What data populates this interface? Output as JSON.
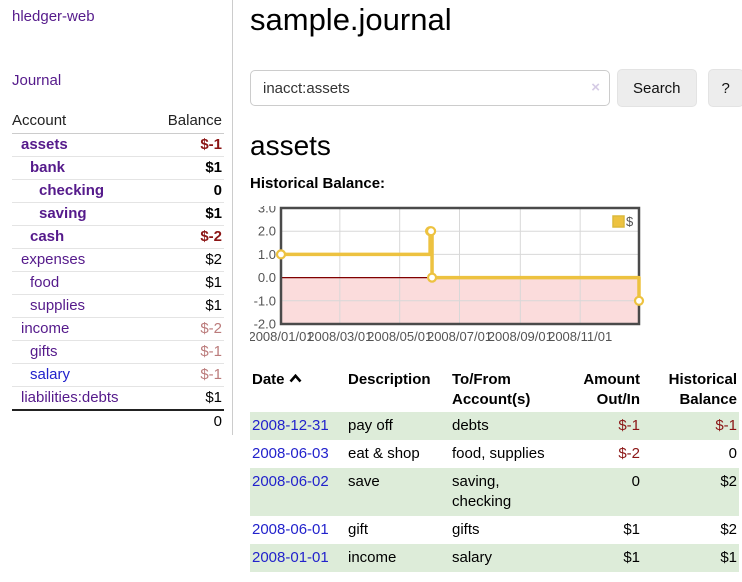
{
  "colors": {
    "link_purple": "#551a8b",
    "link_blue": "#2222cc",
    "negative_strong": "#8b1515",
    "negative_light": "#bb7b7b",
    "row_stripe_green": "#ddecd9",
    "chart_series_yellow": "#edc240",
    "chart_negative_fill": "#fbdcdc",
    "chart_zero_line": "#800000"
  },
  "app": {
    "title": "hledger-web",
    "nav_journal": "Journal"
  },
  "sidebar": {
    "accounts_table": {
      "header_account": "Account",
      "header_balance": "Balance",
      "total": "0",
      "accounts": [
        {
          "name": "assets",
          "indent": 0,
          "bold": true,
          "balance": "$-1",
          "balance_class": "neg-strong",
          "unvisited": false
        },
        {
          "name": "bank",
          "indent": 1,
          "bold": true,
          "balance": "$1",
          "balance_class": "",
          "unvisited": false
        },
        {
          "name": "checking",
          "indent": 2,
          "bold": true,
          "balance": "0",
          "balance_class": "",
          "unvisited": false
        },
        {
          "name": "saving",
          "indent": 2,
          "bold": true,
          "balance": "$1",
          "balance_class": "",
          "unvisited": false
        },
        {
          "name": "cash",
          "indent": 1,
          "bold": true,
          "balance": "$-2",
          "balance_class": "neg-strong",
          "unvisited": false
        },
        {
          "name": "expenses",
          "indent": 0,
          "bold": false,
          "balance": "$2",
          "balance_class": "",
          "unvisited": false
        },
        {
          "name": "food",
          "indent": 1,
          "bold": false,
          "balance": "$1",
          "balance_class": "",
          "unvisited": false
        },
        {
          "name": "supplies",
          "indent": 1,
          "bold": false,
          "balance": "$1",
          "balance_class": "",
          "unvisited": false
        },
        {
          "name": "income",
          "indent": 0,
          "bold": false,
          "balance": "$-2",
          "balance_class": "neg-light",
          "unvisited": false
        },
        {
          "name": "gifts",
          "indent": 1,
          "bold": false,
          "balance": "$-1",
          "balance_class": "neg-light",
          "unvisited": false
        },
        {
          "name": "salary",
          "indent": 1,
          "bold": false,
          "balance": "$-1",
          "balance_class": "neg-light",
          "unvisited": true
        },
        {
          "name": "liabilities:debts",
          "indent": 0,
          "bold": false,
          "balance": "$1",
          "balance_class": "",
          "unvisited": false
        }
      ]
    }
  },
  "main": {
    "title": "sample.journal",
    "search": {
      "value": "inacct:assets",
      "clear_icon": "×",
      "search_label": "Search",
      "help_label": "?"
    },
    "section_title": "assets",
    "chart_label": "Historical Balance:"
  },
  "chart_data": {
    "type": "line",
    "title": "Historical Balance:",
    "step": true,
    "series": [
      {
        "name": "$",
        "color": "#edc240",
        "points": [
          [
            "2008-01-01",
            1
          ],
          [
            "2008-06-01",
            2
          ],
          [
            "2008-06-02",
            2
          ],
          [
            "2008-06-03",
            0
          ],
          [
            "2008-12-31",
            -1
          ]
        ]
      }
    ],
    "x_range": [
      "2008-01-01",
      "2008-12-31"
    ],
    "x_ticks": [
      "2008/01/01",
      "2008/03/01",
      "2008/05/01",
      "2008/07/01",
      "2008/09/01",
      "2008/11/01"
    ],
    "y_ticks": [
      "3.0",
      "2.0",
      "1.0",
      "0.0",
      "-1.0",
      "-2.0"
    ],
    "ylim": [
      -2,
      3
    ],
    "grid": true,
    "legend_position": "top-right",
    "markings": {
      "below_zero_fill": "#fbdcdc",
      "zero_line_color": "#800000"
    }
  },
  "transactions": {
    "headers": [
      "Date",
      "Description",
      "To/From Account(s)",
      "Amount Out/In",
      "Historical Balance"
    ],
    "sort_icon": "chevron-up",
    "rows": [
      {
        "date": "2008-12-31",
        "description": "pay off",
        "accounts": "debts",
        "amount": "$-1",
        "amount_negative": true,
        "balance": "$-1",
        "balance_negative": true
      },
      {
        "date": "2008-06-03",
        "description": "eat & shop",
        "accounts": "food, supplies",
        "amount": "$-2",
        "amount_negative": true,
        "balance": "0",
        "balance_negative": false
      },
      {
        "date": "2008-06-02",
        "description": "save",
        "accounts": "saving, checking",
        "amount": "0",
        "amount_negative": false,
        "balance": "$2",
        "balance_negative": false
      },
      {
        "date": "2008-06-01",
        "description": "gift",
        "accounts": "gifts",
        "amount": "$1",
        "amount_negative": false,
        "balance": "$2",
        "balance_negative": false
      },
      {
        "date": "2008-01-01",
        "description": "income",
        "accounts": "salary",
        "amount": "$1",
        "amount_negative": false,
        "balance": "$1",
        "balance_negative": false
      }
    ]
  }
}
